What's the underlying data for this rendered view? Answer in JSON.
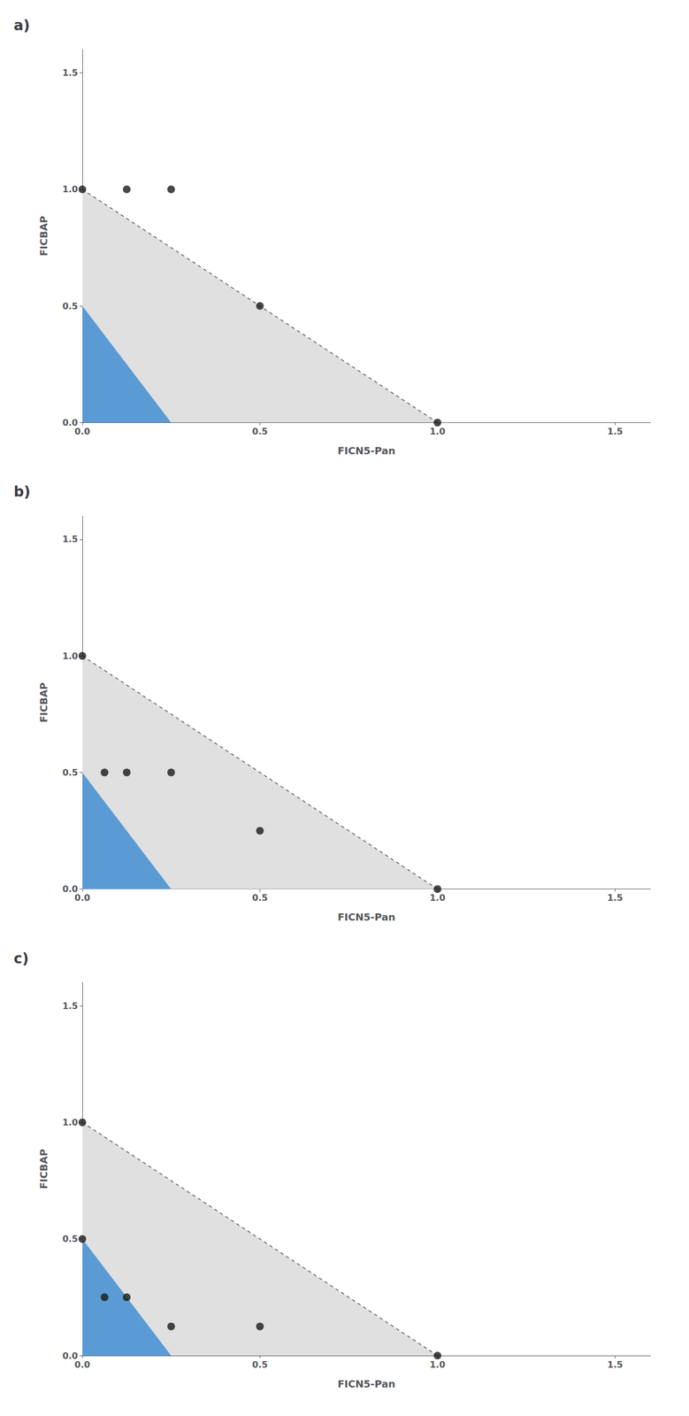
{
  "chart_data": [
    {
      "type": "scatter",
      "title": "a)",
      "x": [
        0.0,
        0.125,
        0.25,
        0.5,
        1.0
      ],
      "values": [
        1.0,
        1.0,
        1.0,
        0.5,
        0.0
      ],
      "color": "#1a1a1a",
      "xlabel": "FICN5-Pan",
      "ylabel": "FICBAP",
      "xlim": [
        0.0,
        1.6
      ],
      "ylim": [
        0.0,
        1.6
      ],
      "xticks": [
        {
          "value": 0.0,
          "label": "0.0"
        },
        0.5,
        {
          "value": 1.0,
          "label": "1.0"
        },
        1.5
      ],
      "yticks": [
        {
          "value": 0.0,
          "label": "0.0"
        },
        0.5,
        {
          "value": 1.0,
          "label": "1.0"
        },
        1.5
      ],
      "grid": false,
      "regions": [
        {
          "points": [
            [
              0.0,
              0.0
            ],
            [
              0.0,
              1.0
            ],
            [
              1.0,
              0.0
            ]
          ],
          "color": "#e0e0e0"
        },
        {
          "points": [
            [
              0.0,
              0.0
            ],
            [
              0.0,
              0.5
            ],
            [
              0.25,
              0.0
            ]
          ],
          "color": "#5b9bd5"
        }
      ],
      "lines": [
        {
          "x": [
            0,
            1
          ],
          "y": [
            1,
            0
          ],
          "color": "#555555",
          "line_style": "dashed"
        }
      ]
    },
    {
      "type": "scatter",
      "title": "b)",
      "x": [
        0.0,
        0.0625,
        0.125,
        0.25,
        0.5,
        1.0
      ],
      "values": [
        1.0,
        0.5,
        0.5,
        0.5,
        0.25,
        0.0
      ],
      "color": "#1a1a1a",
      "xlabel": "FICN5-Pan",
      "ylabel": "FICBAP",
      "xlim": [
        0.0,
        1.6
      ],
      "ylim": [
        0.0,
        1.6
      ],
      "xticks": [
        {
          "value": 0.0,
          "label": "0.0"
        },
        0.5,
        {
          "value": 1.0,
          "label": "1.0"
        },
        1.5
      ],
      "yticks": [
        {
          "value": 0.0,
          "label": "0.0"
        },
        0.5,
        {
          "value": 1.0,
          "label": "1.0"
        },
        1.5
      ],
      "grid": false,
      "regions": [
        {
          "points": [
            [
              0.0,
              0.0
            ],
            [
              0.0,
              1.0
            ],
            [
              1.0,
              0.0
            ]
          ],
          "color": "#e0e0e0"
        },
        {
          "points": [
            [
              0.0,
              0.0
            ],
            [
              0.0,
              0.5
            ],
            [
              0.25,
              0.0
            ]
          ],
          "color": "#5b9bd5"
        }
      ],
      "lines": [
        {
          "x": [
            0,
            1
          ],
          "y": [
            1,
            0
          ],
          "color": "#555555",
          "line_style": "dashed"
        }
      ]
    },
    {
      "type": "scatter",
      "title": "c)",
      "x": [
        0.0,
        0.0,
        0.0625,
        0.125,
        0.25,
        0.5,
        1.0
      ],
      "values": [
        1.0,
        0.5,
        0.25,
        0.25,
        0.125,
        0.125,
        0.0
      ],
      "color": "#1a1a1a",
      "xlabel": "FICN5-Pan",
      "ylabel": "FICBAP",
      "xlim": [
        0.0,
        1.6
      ],
      "ylim": [
        0.0,
        1.6
      ],
      "xticks": [
        {
          "value": 0.0,
          "label": "0.0"
        },
        0.5,
        {
          "value": 1.0,
          "label": "1.0"
        },
        1.5
      ],
      "yticks": [
        {
          "value": 0.0,
          "label": "0.0"
        },
        0.5,
        {
          "value": 1.0,
          "label": "1.0"
        },
        1.5
      ],
      "grid": false,
      "regions": [
        {
          "points": [
            [
              0.0,
              0.0
            ],
            [
              0.0,
              1.0
            ],
            [
              1.0,
              0.0
            ]
          ],
          "color": "#e0e0e0"
        },
        {
          "points": [
            [
              0.0,
              0.0
            ],
            [
              0.0,
              0.5
            ],
            [
              0.25,
              0.0
            ]
          ],
          "color": "#5b9bd5"
        }
      ],
      "lines": [
        {
          "x": [
            0,
            1
          ],
          "y": [
            1,
            0
          ],
          "color": "#555555",
          "line_style": "dashed"
        }
      ]
    }
  ]
}
